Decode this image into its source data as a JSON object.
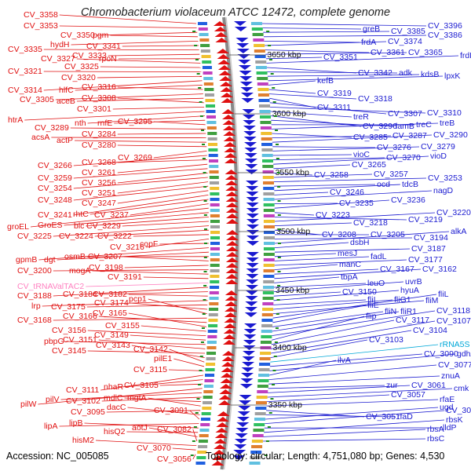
{
  "title": "Chromobacterium violaceum ATCC 12472, complete genome",
  "footer": {
    "accession": "Accession: NC_005085",
    "topology": "Topology: circular; Length: 4,751,080 bp; Genes: 4,530"
  },
  "colors": {
    "forward": "#e01010",
    "reverse": "#1a1ad0",
    "rna": "#00a8d8",
    "trna": "#ff80c0",
    "backbone": "#888888",
    "tick_dot": "#1a8a1a"
  },
  "kbp_ticks": [
    "3650 kbp",
    "3600 kbp",
    "3550 kbp",
    "3500 kbp",
    "3450 kbp",
    "3400 kbp",
    "3350 kbp"
  ],
  "left_labels": [
    "CV_3358",
    "CV_3353",
    "CV_3350",
    "pgm",
    "hydH",
    "CV_3341",
    "CV_3335",
    "CV_3333",
    "rpoN",
    "CV_3327",
    "CV_3325",
    "CV_3321",
    "CV_3320",
    "CV_3314",
    "hlfC",
    "CV_3316",
    "CV_3305",
    "aceB",
    "CV_3308",
    "CV_3301",
    "htrA",
    "nth",
    "rnfE",
    "CV_3295",
    "CV_3289",
    "CV_3284",
    "acsA",
    "actP",
    "CV_3280",
    "CV_3269",
    "CV_3266",
    "CV_3268",
    "CV_3261",
    "CV_3259",
    "CV_3256",
    "CV_3254",
    "CV_3251",
    "CV_3248",
    "CV_3247",
    "CV_3241",
    "rhtC",
    "CV_3237",
    "groEL",
    "GroES",
    "blc",
    "CV_3229",
    "CV_3225",
    "CV_3224",
    "CV_3222",
    "CV_3216",
    "copF",
    "gpmB",
    "dgt",
    "osmB",
    "CV_3207",
    "CV_3198",
    "CV_3200",
    "mogA",
    "CV_3191",
    "CV_tRNAValTAC2",
    "CV_3188",
    "CV_3184",
    "CV_3182",
    "lrp",
    "CV_3175",
    "CV_3174",
    "pcp1",
    "CV_3168",
    "CV_3166",
    "CV_3165",
    "CV_3155",
    "CV_3156",
    "CV_3149",
    "pbpG",
    "CV_3151",
    "CV_3145",
    "CV_3143",
    "CV_3142",
    "pilE1",
    "CV_3115",
    "CV_3111",
    "nhaR",
    "CV_3105",
    "pilW",
    "pilV",
    "CV_3102",
    "mdlC",
    "mgtA",
    "CV_3095",
    "dacC",
    "CV_3091",
    "lipA",
    "lipB",
    "hisQ2",
    "aotJ",
    "CV_3082",
    "hisM2",
    "CV_3070",
    "CV_3056"
  ],
  "right_labels": [
    "CV_3396",
    "greB",
    "CV_3385",
    "CV_3386",
    "frdA",
    "CV_3374",
    "CV_3361",
    "CV_3365",
    "CV_3351",
    "frdD",
    "CV_3342",
    "adk",
    "kdsB",
    "lpxK",
    "kefB",
    "CV_3319",
    "CV_3318",
    "CV_3311",
    "CV_3307",
    "CV_3310",
    "treR",
    "CV_3296",
    "lamB",
    "treC",
    "treB",
    "CV_3285",
    "CV_3287",
    "CV_3290",
    "CV_3276",
    "CV_3279",
    "vioC",
    "CV_3270",
    "vioD",
    "CV_3265",
    "CV_3258",
    "CV_3257",
    "CV_3253",
    "ocd",
    "tdcB",
    "CV_3246",
    "nagD",
    "CV_3235",
    "CV_3236",
    "CV_3223",
    "CV_3219",
    "CV_3220",
    "CV_3218",
    "CV_3208",
    "CV_3205",
    "CV_3194",
    "alkA",
    "dsbH",
    "CV_3187",
    "mesJ",
    "fadL",
    "CV_3177",
    "manC",
    "CV_3167",
    "CV_3162",
    "tbpA",
    "leuO",
    "uvrB",
    "CV_3150",
    "hyuA",
    "fliI",
    "fliG1",
    "fliM",
    "fliL",
    "fliE",
    "fliN",
    "fliR1",
    "CV_3118",
    "flip",
    "CV_3117",
    "CV_3107",
    "CV_3104",
    "CV_3103",
    "rRNA5S",
    "CV_3090",
    "gdhA",
    "ilvA",
    "CV_3077",
    "znuA",
    "zur",
    "CV_3061",
    "cmk",
    "CV_3057",
    "rfaE",
    "CV_3051",
    "rfaD",
    "ugd",
    "CV_3031",
    "lldP",
    "rbsK",
    "rbsA",
    "rbsC"
  ],
  "placed_left": [
    [
      "CV_3358",
      30,
      22
    ],
    [
      "CV_3353",
      30,
      36
    ],
    [
      "CV_3350",
      77,
      48
    ],
    [
      "pgm",
      118,
      48
    ],
    [
      "hydH",
      64,
      60
    ],
    [
      "CV_3341",
      110,
      62
    ],
    [
      "CV_3335",
      10,
      66
    ],
    [
      "CV_3333",
      92,
      74
    ],
    [
      "rpoN",
      126,
      78
    ],
    [
      "CV_3327",
      52,
      78
    ],
    [
      "CV_3325",
      82,
      88
    ],
    [
      "CV_3321",
      10,
      94
    ],
    [
      "CV_3320",
      78,
      102
    ],
    [
      "CV_3314",
      10,
      118
    ],
    [
      "hlfC",
      75,
      118
    ],
    [
      "CV_3316",
      104,
      114
    ],
    [
      "CV_3305",
      25,
      130
    ],
    [
      "aceB",
      72,
      132
    ],
    [
      "CV_3308",
      104,
      128
    ],
    [
      "CV_3301",
      98,
      142
    ],
    [
      "htrA",
      10,
      156
    ],
    [
      "nth",
      95,
      160
    ],
    [
      "rnfE",
      124,
      160
    ],
    [
      "CV_3295",
      150,
      158
    ],
    [
      "CV_3289",
      44,
      166
    ],
    [
      "CV_3284",
      104,
      174
    ],
    [
      "acsA",
      40,
      178
    ],
    [
      "actP",
      72,
      182
    ],
    [
      "CV_3280",
      104,
      188
    ],
    [
      "CV_3269",
      150,
      204
    ],
    [
      "CV_3266",
      48,
      214
    ],
    [
      "CV_3268",
      104,
      210
    ],
    [
      "CV_3261",
      104,
      223
    ],
    [
      "CV_3259",
      48,
      230
    ],
    [
      "CV_3256",
      104,
      236
    ],
    [
      "CV_3254",
      48,
      243
    ],
    [
      "CV_3251",
      104,
      249
    ],
    [
      "CV_3248",
      48,
      258
    ],
    [
      "CV_3247",
      104,
      262
    ],
    [
      "CV_3241",
      48,
      277
    ],
    [
      "rhtC",
      93,
      276
    ],
    [
      "CV_3237",
      120,
      277
    ],
    [
      "groEL",
      9,
      292
    ],
    [
      "GroES",
      48,
      290
    ],
    [
      "blc",
      94,
      291
    ],
    [
      "CV_3229",
      110,
      291
    ],
    [
      "CV_3225",
      22,
      304
    ],
    [
      "CV_3224",
      75,
      304
    ],
    [
      "CV_3222",
      124,
      304
    ],
    [
      "CV_3216",
      140,
      318
    ],
    [
      "copF",
      178,
      314
    ],
    [
      "gpmB",
      20,
      334
    ],
    [
      "dgt",
      56,
      334
    ],
    [
      "osmB",
      82,
      330
    ],
    [
      "CV_3207",
      112,
      330
    ],
    [
      "CV_3198",
      113,
      344
    ],
    [
      "CV_3200",
      22,
      348
    ],
    [
      "mogA",
      88,
      348
    ],
    [
      "CV_3191",
      137,
      356
    ],
    [
      "CV_tRNAValTAC2",
      22,
      368
    ],
    [
      "CV_3188",
      22,
      380
    ],
    [
      "CV_3184",
      80,
      378
    ],
    [
      "CV_3182",
      118,
      378
    ],
    [
      "lrp",
      40,
      393
    ],
    [
      "CV_3175",
      65,
      394
    ],
    [
      "CV_3174",
      120,
      389
    ],
    [
      "pcp1",
      164,
      384
    ],
    [
      "CV_3168",
      22,
      411
    ],
    [
      "CV_3166",
      80,
      406
    ],
    [
      "CV_3165",
      118,
      402
    ],
    [
      "CV_3155",
      134,
      418
    ],
    [
      "CV_3156",
      66,
      424
    ],
    [
      "CV_3149",
      120,
      430
    ],
    [
      "pbpG",
      56,
      438
    ],
    [
      "CV_3151",
      80,
      436
    ],
    [
      "CV_3145",
      66,
      450
    ],
    [
      "CV_3143",
      122,
      443
    ],
    [
      "CV_3142",
      170,
      448
    ],
    [
      "pilE1",
      196,
      460
    ],
    [
      "CV_3115",
      170,
      474
    ],
    [
      "CV_3111",
      84,
      500
    ],
    [
      "nhaR",
      132,
      496
    ],
    [
      "CV_3105",
      158,
      494
    ],
    [
      "pilW",
      26,
      518
    ],
    [
      "pilV",
      58,
      512
    ],
    [
      "CV_3102",
      84,
      514
    ],
    [
      "mdlC",
      132,
      510
    ],
    [
      "mgtA",
      162,
      510
    ],
    [
      "CV_3095",
      90,
      528
    ],
    [
      "dacC",
      136,
      522
    ],
    [
      "CV_3091",
      196,
      526
    ],
    [
      "lipA",
      56,
      546
    ],
    [
      "lipB",
      88,
      542
    ],
    [
      "hisQ2",
      132,
      553
    ],
    [
      "aotJ",
      168,
      548
    ],
    [
      "CV_3082",
      200,
      550
    ],
    [
      "hisM2",
      92,
      564
    ],
    [
      "CV_3070",
      174,
      574
    ],
    [
      "CV_3056",
      200,
      588
    ]
  ],
  "placed_right": [
    [
      "CV_3396",
      545,
      36
    ],
    [
      "greB",
      462,
      40
    ],
    [
      "CV_3385",
      498,
      43
    ],
    [
      "CV_3386",
      545,
      48
    ],
    [
      "frdA",
      460,
      57
    ],
    [
      "CV_3374",
      494,
      56
    ],
    [
      "CV_3361",
      472,
      70
    ],
    [
      "CV_3365",
      520,
      70
    ],
    [
      "CV_3351",
      412,
      76
    ],
    [
      "frdD",
      586,
      74
    ],
    [
      "CV_3342",
      456,
      96
    ],
    [
      "adk",
      508,
      96
    ],
    [
      "kdsB",
      536,
      98
    ],
    [
      "lpxK",
      566,
      100
    ],
    [
      "kefB",
      404,
      106
    ],
    [
      "CV_3319",
      404,
      122
    ],
    [
      "CV_3318",
      456,
      129
    ],
    [
      "CV_3311",
      404,
      140
    ],
    [
      "CV_3307",
      494,
      148
    ],
    [
      "CV_3310",
      544,
      147
    ],
    [
      "treR",
      450,
      152
    ],
    [
      "CV_3296",
      462,
      164
    ],
    [
      "lamB",
      504,
      164
    ],
    [
      "treC",
      530,
      162
    ],
    [
      "treB",
      560,
      160
    ],
    [
      "CV_3285",
      450,
      178
    ],
    [
      "CV_3287",
      500,
      176
    ],
    [
      "CV_3290",
      552,
      175
    ],
    [
      "CV_3276",
      480,
      191
    ],
    [
      "CV_3279",
      536,
      190
    ],
    [
      "vioC",
      450,
      200
    ],
    [
      "CV_3270",
      492,
      204
    ],
    [
      "vioD",
      548,
      202
    ],
    [
      "CV_3265",
      448,
      213
    ],
    [
      "CV_3258",
      400,
      226
    ],
    [
      "CV_3257",
      476,
      225
    ],
    [
      "CV_3253",
      545,
      230
    ],
    [
      "ocd",
      480,
      238
    ],
    [
      "tdcB",
      512,
      238
    ],
    [
      "CV_3246",
      420,
      248
    ],
    [
      "nagD",
      552,
      246
    ],
    [
      "CV_3235",
      432,
      262
    ],
    [
      "CV_3236",
      498,
      258
    ],
    [
      "CV_3223",
      402,
      277
    ],
    [
      "CV_3219",
      520,
      283
    ],
    [
      "CV_3220",
      556,
      274
    ],
    [
      "CV_3218",
      450,
      287
    ],
    [
      "CV_3208",
      410,
      302
    ],
    [
      "CV_3205",
      472,
      302
    ],
    [
      "CV_3194",
      527,
      306
    ],
    [
      "alkA",
      574,
      298
    ],
    [
      "dsbH",
      446,
      312
    ],
    [
      "CV_3187",
      524,
      320
    ],
    [
      "mesJ",
      430,
      326
    ],
    [
      "fadL",
      472,
      330
    ],
    [
      "CV_3177",
      520,
      334
    ],
    [
      "manC",
      432,
      340
    ],
    [
      "CV_3167",
      484,
      346
    ],
    [
      "CV_3162",
      538,
      346
    ],
    [
      "tbpA",
      434,
      356
    ],
    [
      "leuO",
      468,
      364
    ],
    [
      "uvrB",
      516,
      362
    ],
    [
      "CV_3150",
      436,
      375
    ],
    [
      "hyuA",
      510,
      373
    ],
    [
      "fliI",
      468,
      385
    ],
    [
      "fliG1",
      502,
      385
    ],
    [
      "fliM",
      542,
      386
    ],
    [
      "fliL",
      558,
      378
    ],
    [
      "fliE",
      468,
      392
    ],
    [
      "fliN",
      490,
      400
    ],
    [
      "fliR1",
      510,
      400
    ],
    [
      "CV_3118",
      556,
      399
    ],
    [
      "flip",
      466,
      406
    ],
    [
      "CV_3117",
      504,
      411
    ],
    [
      "CV_3107",
      556,
      412
    ],
    [
      "CV_3104",
      526,
      424
    ],
    [
      "CV_3103",
      470,
      436
    ],
    [
      "rRNA5S",
      560,
      442
    ],
    [
      "CV_3090",
      540,
      454
    ],
    [
      "gdhA",
      582,
      454
    ],
    [
      "ilvA",
      430,
      462
    ],
    [
      "CV_3077",
      558,
      468
    ],
    [
      "znuA",
      562,
      482
    ],
    [
      "zur",
      492,
      494
    ],
    [
      "CV_3061",
      524,
      494
    ],
    [
      "cmk",
      578,
      498
    ],
    [
      "CV_3057",
      498,
      506
    ],
    [
      "rfaE",
      560,
      512
    ],
    [
      "CV_3051",
      466,
      534
    ],
    [
      "rfaD",
      506,
      534
    ],
    [
      "ugd",
      560,
      522
    ],
    [
      "CV_3031",
      568,
      526
    ],
    [
      "lldP",
      564,
      548
    ],
    [
      "rbsK",
      568,
      538
    ],
    [
      "rbsA",
      544,
      550
    ],
    [
      "rbsC",
      544,
      562
    ]
  ]
}
